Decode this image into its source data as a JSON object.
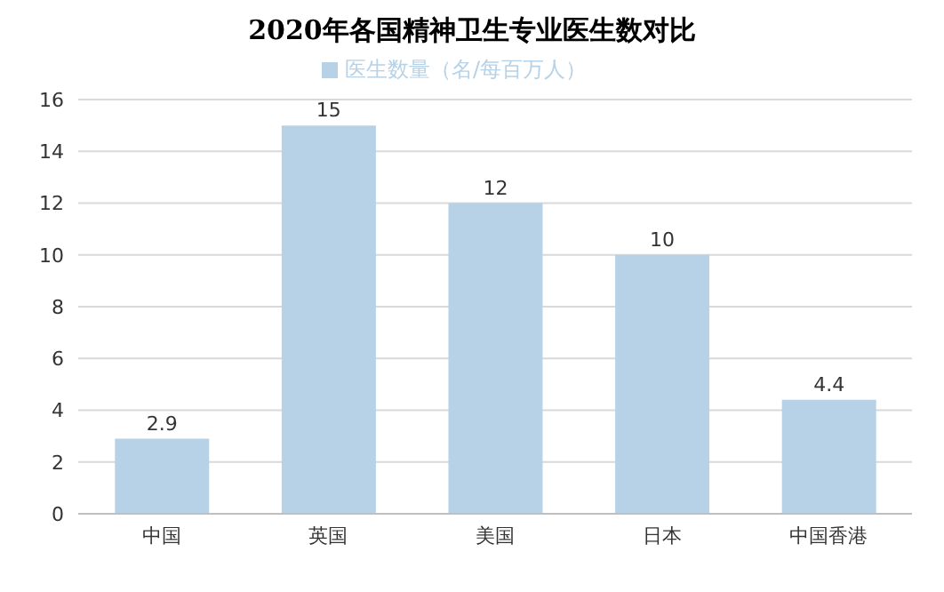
{
  "chart_data": {
    "type": "bar",
    "title": "2020年各国精神卫生专业医生数对比",
    "categories": [
      "中国",
      "英国",
      "美国",
      "日本",
      "中国香港"
    ],
    "series": [
      {
        "name": "医生数量（名/每百万人）",
        "color": "#b7d2e6",
        "values": [
          2.9,
          15,
          12,
          10,
          4.4
        ]
      }
    ],
    "ylim": [
      0,
      16
    ],
    "yticks": [
      0,
      2,
      4,
      6,
      8,
      10,
      12,
      14,
      16
    ],
    "grid": "y",
    "legend": "top",
    "data_labels": true
  }
}
